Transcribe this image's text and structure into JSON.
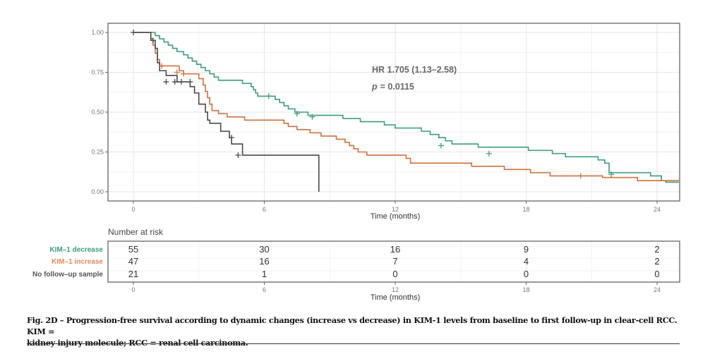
{
  "chart_data": {
    "type": "line",
    "subtype": "kaplan-meier step",
    "title": "",
    "xlabel": "Time (months)",
    "ylabel": "",
    "xlim": [
      -1.2,
      25
    ],
    "ylim": [
      0,
      1
    ],
    "x_ticks": [
      "0",
      "6",
      "12",
      "18",
      "24"
    ],
    "x_tick_values": [
      0,
      6,
      12,
      18,
      24
    ],
    "y_ticks": [
      "0.00",
      "0.25",
      "0.50",
      "0.75",
      "1.00"
    ],
    "y_tick_values": [
      0,
      0.25,
      0.5,
      0.75,
      1.0
    ],
    "grid": true,
    "annotations": {
      "hr": "HR 1.705 (1.13–2.58)",
      "p_label": "p",
      "p_value": "= 0.0115"
    },
    "series": [
      {
        "name": "KIM–1 decrease",
        "color": "#3a9e7e",
        "steps": [
          [
            0,
            1.0
          ],
          [
            1.0,
            0.98
          ],
          [
            1.2,
            0.96
          ],
          [
            1.4,
            0.94
          ],
          [
            1.6,
            0.92
          ],
          [
            1.8,
            0.9
          ],
          [
            2.0,
            0.88
          ],
          [
            2.3,
            0.86
          ],
          [
            2.5,
            0.84
          ],
          [
            2.7,
            0.82
          ],
          [
            2.9,
            0.8
          ],
          [
            3.1,
            0.78
          ],
          [
            3.3,
            0.76
          ],
          [
            3.5,
            0.74
          ],
          [
            3.7,
            0.72
          ],
          [
            3.9,
            0.7
          ],
          [
            5.0,
            0.68
          ],
          [
            5.4,
            0.66
          ],
          [
            5.5,
            0.64
          ],
          [
            5.6,
            0.62
          ],
          [
            5.7,
            0.6
          ],
          [
            6.5,
            0.58
          ],
          [
            6.7,
            0.56
          ],
          [
            6.9,
            0.54
          ],
          [
            7.1,
            0.52
          ],
          [
            7.4,
            0.5
          ],
          [
            8.0,
            0.48
          ],
          [
            9.6,
            0.46
          ],
          [
            10.4,
            0.44
          ],
          [
            11.5,
            0.42
          ],
          [
            12.0,
            0.4
          ],
          [
            13.2,
            0.38
          ],
          [
            13.6,
            0.36
          ],
          [
            14.0,
            0.34
          ],
          [
            14.3,
            0.32
          ],
          [
            14.6,
            0.3
          ],
          [
            15.8,
            0.28
          ],
          [
            18.1,
            0.26
          ],
          [
            19.2,
            0.24
          ],
          [
            19.8,
            0.22
          ],
          [
            21.3,
            0.2
          ],
          [
            21.6,
            0.18
          ],
          [
            21.8,
            0.12
          ],
          [
            23.7,
            0.1
          ],
          [
            24.2,
            0.07
          ],
          [
            24.4,
            0.06
          ],
          [
            25,
            0.06
          ]
        ],
        "censor": [
          [
            6.2,
            0.6
          ],
          [
            7.5,
            0.49
          ],
          [
            8.2,
            0.47
          ],
          [
            14.1,
            0.29
          ],
          [
            16.3,
            0.24
          ],
          [
            21.9,
            0.11
          ]
        ]
      },
      {
        "name": "KIM–1 increase",
        "color": "#d2703a",
        "steps": [
          [
            0,
            1.0
          ],
          [
            0.8,
            0.96
          ],
          [
            0.9,
            0.92
          ],
          [
            1.0,
            0.87
          ],
          [
            1.1,
            0.83
          ],
          [
            1.2,
            0.79
          ],
          [
            2.1,
            0.76
          ],
          [
            2.3,
            0.74
          ],
          [
            3.0,
            0.71
          ],
          [
            3.2,
            0.67
          ],
          [
            3.3,
            0.63
          ],
          [
            3.4,
            0.59
          ],
          [
            3.5,
            0.55
          ],
          [
            3.6,
            0.51
          ],
          [
            3.9,
            0.49
          ],
          [
            4.3,
            0.47
          ],
          [
            5.1,
            0.45
          ],
          [
            6.9,
            0.43
          ],
          [
            7.1,
            0.41
          ],
          [
            7.5,
            0.39
          ],
          [
            8.1,
            0.37
          ],
          [
            8.6,
            0.35
          ],
          [
            9.3,
            0.33
          ],
          [
            9.7,
            0.31
          ],
          [
            9.9,
            0.29
          ],
          [
            10.1,
            0.27
          ],
          [
            10.3,
            0.25
          ],
          [
            10.7,
            0.23
          ],
          [
            12.5,
            0.21
          ],
          [
            12.7,
            0.18
          ],
          [
            15.5,
            0.16
          ],
          [
            17.0,
            0.14
          ],
          [
            18.2,
            0.12
          ],
          [
            19.1,
            0.1
          ],
          [
            21.5,
            0.09
          ],
          [
            22.4,
            0.09
          ],
          [
            23.1,
            0.07
          ],
          [
            25,
            0.07
          ]
        ],
        "censor": [
          [
            1.3,
            0.79
          ],
          [
            2.0,
            0.75
          ],
          [
            2.3,
            0.74
          ],
          [
            20.5,
            0.1
          ]
        ]
      },
      {
        "name": "No follow–up sample",
        "color": "#4a4a4a",
        "steps": [
          [
            0,
            1.0
          ],
          [
            0.8,
            0.95
          ],
          [
            1.0,
            0.9
          ],
          [
            1.1,
            0.81
          ],
          [
            1.2,
            0.76
          ],
          [
            1.5,
            0.73
          ],
          [
            2.0,
            0.69
          ],
          [
            2.5,
            0.69
          ],
          [
            2.6,
            0.66
          ],
          [
            2.8,
            0.62
          ],
          [
            3.0,
            0.55
          ],
          [
            3.3,
            0.5
          ],
          [
            3.4,
            0.45
          ],
          [
            3.5,
            0.43
          ],
          [
            4.0,
            0.38
          ],
          [
            4.4,
            0.34
          ],
          [
            4.5,
            0.3
          ],
          [
            5.0,
            0.26
          ],
          [
            5.0,
            0.23
          ],
          [
            8.0,
            0.23
          ],
          [
            8.5,
            0.0
          ]
        ],
        "censor": [
          [
            0,
            1.0
          ],
          [
            0.9,
            0.95
          ],
          [
            1.5,
            0.69
          ],
          [
            1.9,
            0.69
          ],
          [
            2.2,
            0.69
          ],
          [
            2.6,
            0.69
          ],
          [
            4.5,
            0.34
          ],
          [
            4.8,
            0.23
          ]
        ]
      }
    ],
    "risk_table": {
      "title": "Number at risk",
      "xlabel": "Time (months)",
      "time_points": [
        0,
        6,
        12,
        18,
        24
      ],
      "rows": [
        {
          "label": "KIM–1 decrease",
          "color": "#3a9e7e",
          "values": [
            55,
            30,
            16,
            9,
            2
          ]
        },
        {
          "label": "KIM–1 increase",
          "color": "#e08a5c",
          "values": [
            47,
            16,
            7,
            4,
            2
          ]
        },
        {
          "label": "No follow–up sample",
          "color": "#555555",
          "values": [
            21,
            1,
            0,
            0,
            0
          ]
        }
      ]
    }
  },
  "caption": {
    "line1": "Fig. 2D – Progression-free survival according to dynamic changes (increase vs decrease) in KIM-1 levels from baseline to first follow-up in clear-cell RCC. KIM =",
    "line2": "kidney injury molecule; RCC = renal cell carcinoma."
  }
}
